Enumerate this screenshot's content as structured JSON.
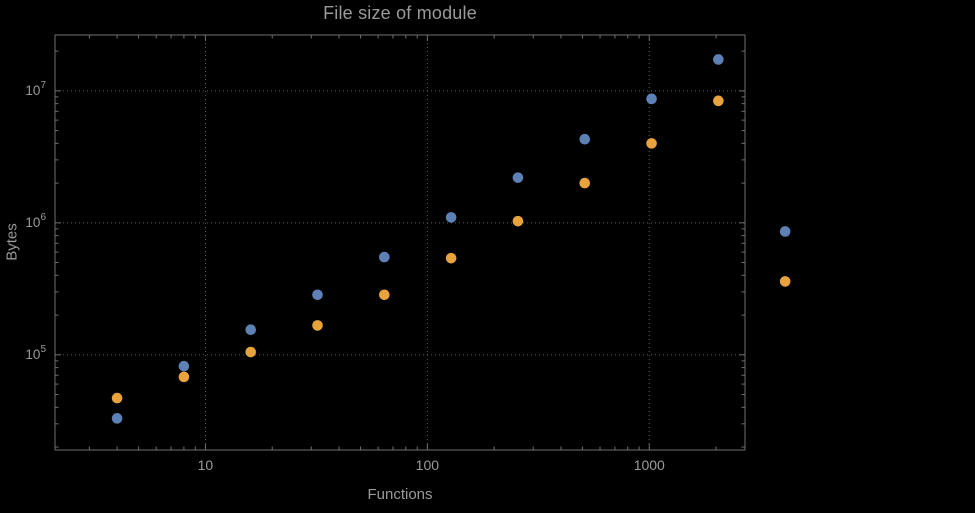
{
  "colors": {
    "background": "#000000",
    "text": "#9a9a9a",
    "frame": "#6f6f6f",
    "grid": "#5c5c5c",
    "series_blue": "#5e81b5",
    "series_orange": "#e8a33d"
  },
  "chart_data": {
    "type": "scatter",
    "title": "File size of module",
    "xlabel": "Functions",
    "ylabel": "Bytes",
    "xscale": "log",
    "yscale": "log",
    "grid": true,
    "legend": "none",
    "x": [
      4,
      8,
      16,
      32,
      64,
      128,
      256,
      512,
      1024,
      2048,
      4096
    ],
    "series": [
      {
        "name": "blue",
        "color": "#5e81b5",
        "y": [
          33000,
          82000,
          155000,
          285000,
          550000,
          1100000,
          2200000,
          4300000,
          8700000,
          17300000,
          860000
        ]
      },
      {
        "name": "orange",
        "color": "#e8a33d",
        "y": [
          47000,
          68000,
          105000,
          167000,
          285000,
          540000,
          1030000,
          2000000,
          4000000,
          8400000,
          360000
        ]
      }
    ],
    "xticks": [
      10,
      100,
      1000
    ],
    "xtick_labels": [
      "10",
      "100",
      "1000"
    ],
    "yticks": [
      100000,
      1000000,
      10000000
    ],
    "ytick_exponents": [
      5,
      6,
      7
    ],
    "xlim": [
      2.1,
      2700
    ],
    "ylim": [
      19000,
      26500000
    ]
  }
}
